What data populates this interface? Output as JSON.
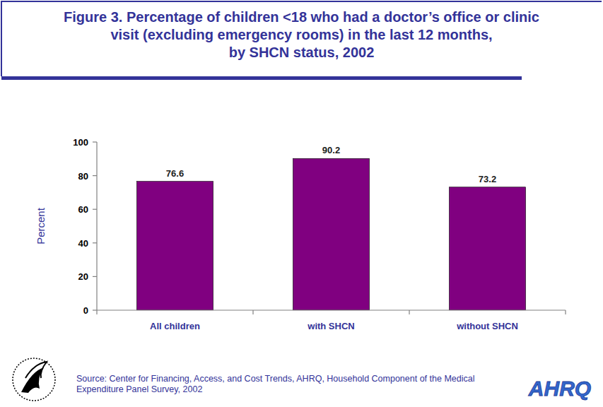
{
  "chart_data": {
    "type": "bar",
    "title": "Figure 3. Percentage of children <18 who had a doctor’s office or clinic\nvisit (excluding emergency rooms) in the last 12 months,\nby SHCN status, 2002",
    "y_label": "Percent",
    "categories": [
      "All children",
      "with SHCN",
      "without SHCN"
    ],
    "values": [
      76.6,
      90.2,
      73.2
    ],
    "color": "#800080",
    "ylim": [
      0,
      100
    ],
    "yticks": [
      0,
      20,
      40,
      60,
      80,
      100
    ],
    "grid": false,
    "data_labels": true,
    "source": "Source: Center for Financing, Access, and Cost Trends, AHRQ, Household Component of the Medical\nExpenditure Panel Survey, 2002",
    "logo": "AHRQ"
  }
}
